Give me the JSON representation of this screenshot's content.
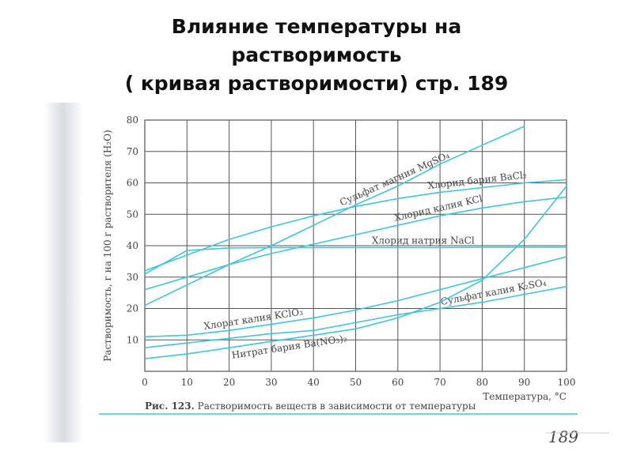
{
  "title_lines": [
    "Влияние температуры на",
    "растворимость",
    "( кривая растворимости) стр. 189"
  ],
  "chart_data": {
    "type": "line",
    "y_label": "Растворимость, г на 100 г растворителя (H₂O)",
    "x_label": "Температура, °С",
    "x": [
      0,
      10,
      20,
      30,
      40,
      50,
      60,
      70,
      80,
      90,
      100
    ],
    "xlim": [
      0,
      100
    ],
    "xticks": [
      0,
      10,
      20,
      30,
      40,
      50,
      60,
      70,
      80,
      90,
      100
    ],
    "ylim": [
      0,
      80
    ],
    "yticks": [
      10,
      20,
      30,
      40,
      50,
      60,
      70,
      80
    ],
    "grid": true,
    "series": [
      {
        "name": "Сульфат магния MgSO₄",
        "color": "#3cc6e0",
        "values": [
          21,
          27.5,
          34,
          40,
          46.5,
          53,
          59,
          66,
          72,
          78,
          null
        ]
      },
      {
        "name": "Хлорид бария BaCl₂",
        "color": "#3cc6e0",
        "values": [
          32,
          37,
          42,
          46,
          49.5,
          52.5,
          55,
          57,
          58.5,
          60,
          61
        ]
      },
      {
        "name": "Хлорид калия KCl",
        "color": "#3cc6e0",
        "values": [
          26,
          30,
          34,
          37.5,
          40.5,
          43.5,
          46.5,
          49.5,
          52,
          54,
          55.5
        ]
      },
      {
        "name": "Хлорид натрия NaCl",
        "color": "#3cc6e0",
        "values": [
          31,
          38.5,
          39.3,
          39.4,
          39.4,
          39.4,
          39.4,
          39.4,
          39.5,
          39.5,
          39.5
        ]
      },
      {
        "name": "Хлорат калия KClO₃",
        "color": "#3cc6e0",
        "values": [
          11,
          11.5,
          13,
          15,
          17,
          19.5,
          22.5,
          26,
          29.5,
          33,
          36.5
        ]
      },
      {
        "name": "Сульфат калия K₂SO₄",
        "color": "#3cc6e0",
        "values": [
          7.5,
          9,
          10.5,
          12,
          13,
          15.5,
          18,
          20,
          22,
          24.5,
          27
        ]
      },
      {
        "name": "Нитрат бария Ba(NO₃)₂",
        "color": "#3cc6e0",
        "values": [
          4,
          5.5,
          7.5,
          9.5,
          11.5,
          13.5,
          17,
          22,
          29,
          42,
          59
        ]
      }
    ]
  },
  "caption_label": "Рис. 123.",
  "caption_text": "Растворимость веществ в зависимости от температуры",
  "page_number": "189"
}
